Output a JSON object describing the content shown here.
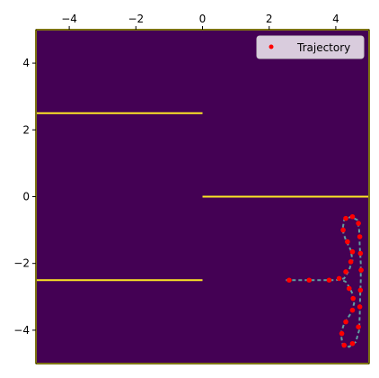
{
  "chart_data": {
    "type": "scatter",
    "title": "",
    "xlabel": "",
    "ylabel": "",
    "xlim": [
      -5,
      5
    ],
    "ylim": [
      -5,
      5
    ],
    "x_ticks": [
      -4,
      -2,
      0,
      2,
      4
    ],
    "x_tick_labels": [
      "−4",
      "−2",
      "0",
      "2",
      "4"
    ],
    "y_ticks": [
      4,
      2,
      0,
      -2,
      -4
    ],
    "y_tick_labels": [
      "4",
      "2",
      "0",
      "−2",
      "−4"
    ],
    "x_axis_position": "top",
    "grid": false,
    "background_color": "#440154",
    "wall_color": "#fde725",
    "walls": [
      {
        "x": [
          -5,
          0
        ],
        "y": [
          2.5,
          2.5
        ]
      },
      {
        "x": [
          0,
          5
        ],
        "y": [
          0,
          0
        ]
      },
      {
        "x": [
          -5,
          0
        ],
        "y": [
          -2.5,
          -2.5
        ]
      },
      {
        "x": [
          -5,
          5
        ],
        "y": [
          -5,
          -5
        ]
      },
      {
        "x": [
          -5,
          5
        ],
        "y": [
          5,
          5
        ]
      },
      {
        "x": [
          -5,
          -5
        ],
        "y": [
          -5,
          5
        ]
      },
      {
        "x": [
          5,
          5
        ],
        "y": [
          -5,
          5
        ]
      }
    ],
    "reference_path": {
      "color": "#5f9ea0",
      "style": "dashed",
      "points": [
        [
          2.5,
          -2.5
        ],
        [
          3.0,
          -2.5
        ],
        [
          3.5,
          -2.5
        ],
        [
          4.0,
          -2.5
        ],
        [
          4.25,
          -2.45
        ],
        [
          4.4,
          -2.2
        ],
        [
          4.5,
          -1.9
        ],
        [
          4.45,
          -1.6
        ],
        [
          4.3,
          -1.3
        ],
        [
          4.2,
          -1.0
        ],
        [
          4.25,
          -0.7
        ],
        [
          4.45,
          -0.6
        ],
        [
          4.65,
          -0.7
        ],
        [
          4.7,
          -1.0
        ],
        [
          4.72,
          -1.5
        ],
        [
          4.75,
          -2.0
        ],
        [
          4.75,
          -2.5
        ],
        [
          4.73,
          -3.0
        ],
        [
          4.72,
          -3.5
        ],
        [
          4.7,
          -4.0
        ],
        [
          4.6,
          -4.35
        ],
        [
          4.4,
          -4.5
        ],
        [
          4.2,
          -4.4
        ],
        [
          4.15,
          -4.1
        ],
        [
          4.25,
          -3.8
        ],
        [
          4.45,
          -3.5
        ],
        [
          4.55,
          -3.2
        ],
        [
          4.5,
          -2.9
        ],
        [
          4.4,
          -2.7
        ],
        [
          4.3,
          -2.55
        ],
        [
          4.2,
          -2.5
        ]
      ]
    },
    "series": [
      {
        "name": "Trajectory",
        "color": "#ff0000",
        "marker": "circle",
        "x": [
          2.6,
          3.2,
          3.8,
          4.1,
          4.3,
          4.45,
          4.5,
          4.35,
          4.22,
          4.3,
          4.5,
          4.68,
          4.72,
          4.74,
          4.76,
          4.74,
          4.72,
          4.68,
          4.5,
          4.25,
          4.18,
          4.3,
          4.5,
          4.52,
          4.4
        ],
        "y": [
          -2.5,
          -2.5,
          -2.5,
          -2.45,
          -2.25,
          -1.95,
          -1.65,
          -1.35,
          -1.0,
          -0.65,
          -0.6,
          -0.8,
          -1.2,
          -1.7,
          -2.2,
          -2.8,
          -3.3,
          -3.9,
          -4.4,
          -4.45,
          -4.1,
          -3.75,
          -3.4,
          -3.05,
          -2.75
        ]
      }
    ],
    "legend": {
      "position": "upper right",
      "entries": [
        {
          "label": "Trajectory",
          "color": "#ff0000"
        }
      ]
    }
  }
}
